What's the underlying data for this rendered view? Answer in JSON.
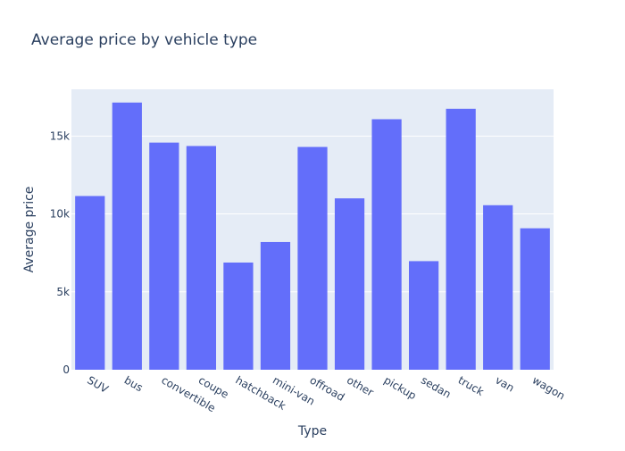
{
  "chart_data": {
    "type": "bar",
    "title": "Average price by vehicle type",
    "xlabel": "Type",
    "ylabel": "Average price",
    "categories": [
      "SUV",
      "bus",
      "convertible",
      "coupe",
      "hatchback",
      "mini-van",
      "offroad",
      "other",
      "pickup",
      "sedan",
      "truck",
      "van",
      "wagon"
    ],
    "values": [
      11150,
      17150,
      14580,
      14360,
      6880,
      8200,
      14300,
      11000,
      16080,
      6970,
      16750,
      10560,
      9080
    ],
    "ylim": [
      0,
      18000
    ],
    "yticks": [
      0,
      5000,
      10000,
      15000
    ],
    "ytick_labels": [
      "0",
      "5k",
      "10k",
      "15k"
    ],
    "grid": true,
    "colors": {
      "bar": "#636efa",
      "plot_bg": "#e5ecf6",
      "grid": "#ffffff",
      "text": "#2a3f5f"
    }
  }
}
